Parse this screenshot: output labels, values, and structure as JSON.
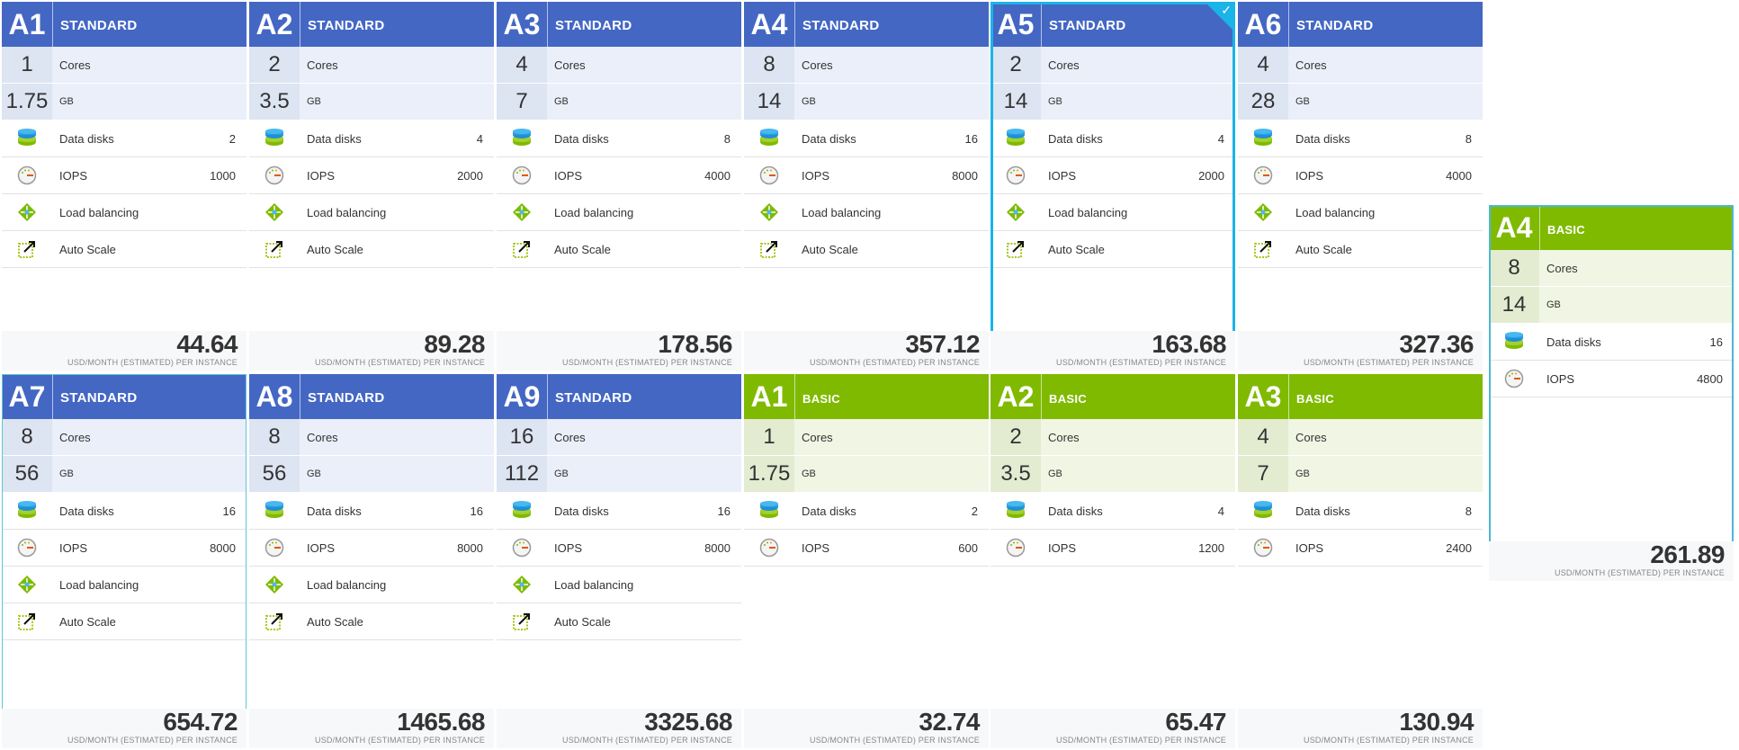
{
  "colors": {
    "standard": "#4467c4",
    "basic": "#7fba00",
    "selected": "#1ab4e8"
  },
  "labels": {
    "cores": "Cores",
    "gb": "GB",
    "data_disks": "Data disks",
    "iops": "IOPS",
    "load_balancing": "Load balancing",
    "auto_scale": "Auto Scale",
    "price_unit": "USD/MONTH (ESTIMATED) PER INSTANCE",
    "check": "✓"
  },
  "cards": [
    {
      "size": "A1",
      "tier": "STANDARD",
      "cores": "1",
      "gb": "1.75",
      "disks": "2",
      "iops": "1000",
      "price": "44.64",
      "state": ""
    },
    {
      "size": "A2",
      "tier": "STANDARD",
      "cores": "2",
      "gb": "3.5",
      "disks": "4",
      "iops": "2000",
      "price": "89.28",
      "state": ""
    },
    {
      "size": "A3",
      "tier": "STANDARD",
      "cores": "4",
      "gb": "7",
      "disks": "8",
      "iops": "4000",
      "price": "178.56",
      "state": ""
    },
    {
      "size": "A4",
      "tier": "STANDARD",
      "cores": "8",
      "gb": "14",
      "disks": "16",
      "iops": "8000",
      "price": "357.12",
      "state": ""
    },
    {
      "size": "A5",
      "tier": "STANDARD",
      "cores": "2",
      "gb": "14",
      "disks": "4",
      "iops": "2000",
      "price": "163.68",
      "state": "selected"
    },
    {
      "size": "A6",
      "tier": "STANDARD",
      "cores": "4",
      "gb": "28",
      "disks": "8",
      "iops": "4000",
      "price": "327.36",
      "state": ""
    },
    {
      "size": "A7",
      "tier": "STANDARD",
      "cores": "8",
      "gb": "56",
      "disks": "16",
      "iops": "8000",
      "price": "654.72",
      "state": "hover"
    },
    {
      "size": "A8",
      "tier": "STANDARD",
      "cores": "8",
      "gb": "56",
      "disks": "16",
      "iops": "8000",
      "price": "1465.68",
      "state": ""
    },
    {
      "size": "A9",
      "tier": "STANDARD",
      "cores": "16",
      "gb": "112",
      "disks": "16",
      "iops": "8000",
      "price": "3325.68",
      "state": ""
    },
    {
      "size": "A1",
      "tier": "BASIC",
      "cores": "1",
      "gb": "1.75",
      "disks": "2",
      "iops": "600",
      "price": "32.74",
      "state": ""
    },
    {
      "size": "A2",
      "tier": "BASIC",
      "cores": "2",
      "gb": "3.5",
      "disks": "4",
      "iops": "1200",
      "price": "65.47",
      "state": ""
    },
    {
      "size": "A3",
      "tier": "BASIC",
      "cores": "4",
      "gb": "7",
      "disks": "8",
      "iops": "2400",
      "price": "130.94",
      "state": ""
    },
    {
      "size": "A4",
      "tier": "BASIC",
      "cores": "8",
      "gb": "14",
      "disks": "16",
      "iops": "4800",
      "price": "261.89",
      "state": "float"
    }
  ]
}
